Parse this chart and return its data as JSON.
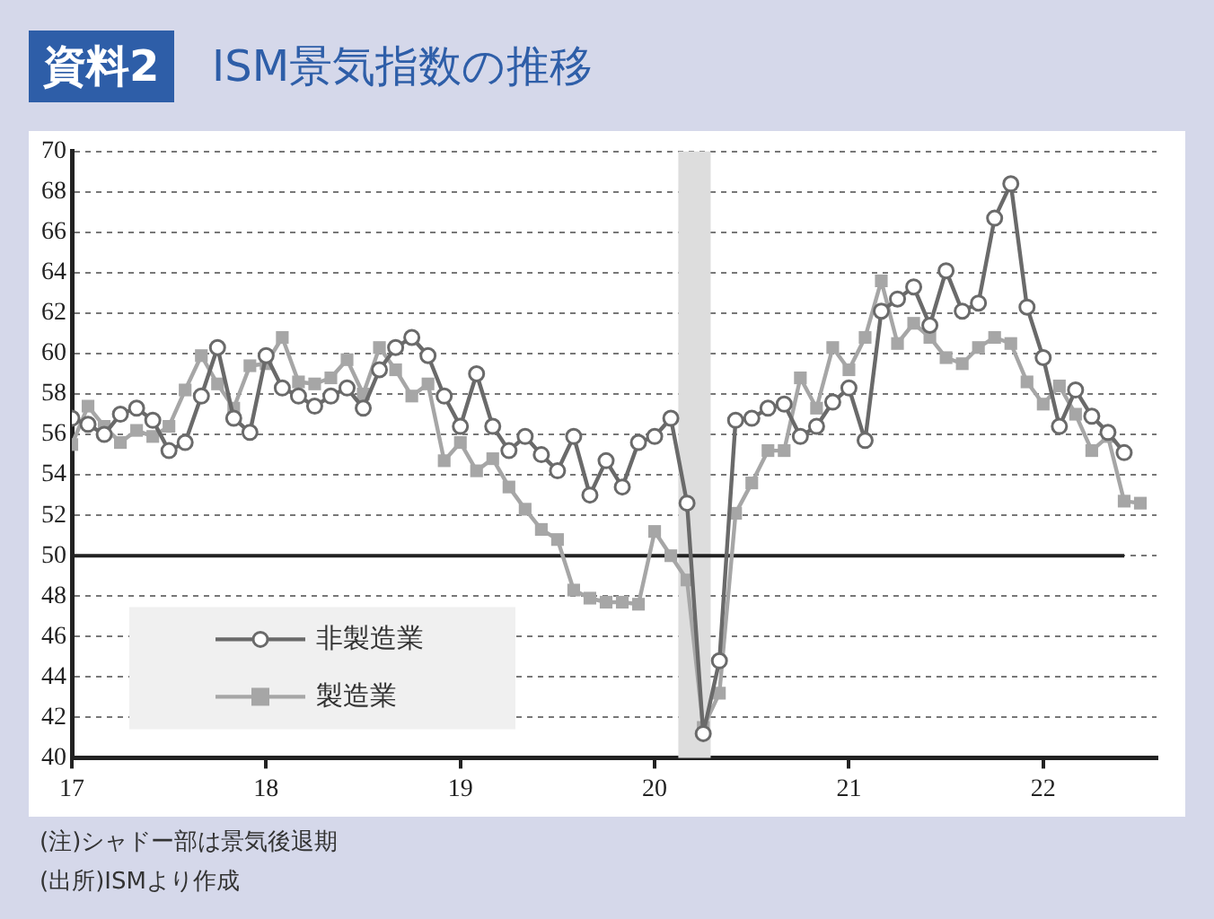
{
  "chart_data": {
    "type": "line",
    "title": "ISM景気指数の推移",
    "subtitle": "資料2",
    "annotations": [
      "(注)シャドー部は景気後退期",
      "(出所)ISMより作成"
    ],
    "x": [
      "2017-01",
      "2017-02",
      "2017-03",
      "2017-04",
      "2017-05",
      "2017-06",
      "2017-07",
      "2017-08",
      "2017-09",
      "2017-10",
      "2017-11",
      "2017-12",
      "2018-01",
      "2018-02",
      "2018-03",
      "2018-04",
      "2018-05",
      "2018-06",
      "2018-07",
      "2018-08",
      "2018-09",
      "2018-10",
      "2018-11",
      "2018-12",
      "2019-01",
      "2019-02",
      "2019-03",
      "2019-04",
      "2019-05",
      "2019-06",
      "2019-07",
      "2019-08",
      "2019-09",
      "2019-10",
      "2019-11",
      "2019-12",
      "2020-01",
      "2020-02",
      "2020-03",
      "2020-04",
      "2020-05",
      "2020-06",
      "2020-07",
      "2020-08",
      "2020-09",
      "2020-10",
      "2020-11",
      "2020-12",
      "2021-01",
      "2021-02",
      "2021-03",
      "2021-04",
      "2021-05",
      "2021-06",
      "2021-07",
      "2021-08",
      "2021-09",
      "2021-10",
      "2021-11",
      "2021-12",
      "2022-01",
      "2022-02",
      "2022-03",
      "2022-04",
      "2022-05",
      "2022-06",
      "2022-07"
    ],
    "series": [
      {
        "name": "非製造業",
        "color": "#6a6a6a",
        "marker": "circle",
        "values": [
          56.8,
          56.5,
          56.0,
          57.0,
          57.3,
          56.7,
          55.2,
          55.6,
          57.9,
          60.3,
          56.8,
          56.1,
          59.9,
          58.3,
          57.9,
          57.4,
          57.9,
          58.3,
          57.3,
          59.2,
          60.3,
          60.8,
          59.9,
          57.9,
          56.4,
          59.0,
          56.4,
          55.2,
          55.9,
          55.0,
          54.2,
          55.9,
          53.0,
          54.7,
          53.4,
          55.6,
          55.9,
          56.8,
          52.6,
          41.2,
          44.8,
          56.7,
          56.8,
          57.3,
          57.5,
          55.9,
          56.4,
          57.6,
          58.3,
          55.7,
          62.1,
          62.7,
          63.3,
          61.4,
          64.1,
          62.1,
          62.5,
          66.7,
          68.4,
          62.3,
          59.8,
          56.4,
          58.2,
          56.9,
          56.1,
          55.1,
          null
        ]
      },
      {
        "name": "製造業",
        "color": "#a6a6a6",
        "marker": "square",
        "values": [
          55.5,
          57.4,
          56.4,
          55.6,
          56.2,
          55.9,
          56.4,
          58.2,
          59.9,
          58.5,
          57.3,
          59.4,
          59.5,
          60.8,
          58.6,
          58.5,
          58.8,
          59.7,
          58.0,
          60.3,
          59.2,
          57.9,
          58.5,
          54.7,
          55.6,
          54.2,
          54.8,
          53.4,
          52.3,
          51.3,
          50.8,
          48.3,
          47.9,
          47.7,
          47.7,
          47.6,
          51.2,
          50.0,
          48.8,
          41.5,
          43.2,
          52.1,
          53.6,
          55.2,
          55.2,
          58.8,
          57.3,
          60.3,
          59.2,
          60.8,
          63.6,
          60.5,
          61.5,
          60.8,
          59.8,
          59.5,
          60.3,
          60.8,
          60.5,
          58.6,
          57.5,
          58.4,
          57.0,
          55.2,
          55.9,
          52.7,
          52.6
        ]
      }
    ],
    "xlim": [
      "2017-01",
      "2022-08"
    ],
    "xticks": [
      {
        "value": "2017-01",
        "label": "17"
      },
      {
        "value": "2018-01",
        "label": "18"
      },
      {
        "value": "2019-01",
        "label": "19"
      },
      {
        "value": "2020-01",
        "label": "20"
      },
      {
        "value": "2021-01",
        "label": "21"
      },
      {
        "value": "2022-01",
        "label": "22"
      }
    ],
    "ylim": [
      40,
      70
    ],
    "yticks": [
      40,
      42,
      44,
      46,
      48,
      50,
      52,
      54,
      56,
      58,
      60,
      62,
      64,
      66,
      68,
      70
    ],
    "ref_lines": [
      {
        "axis": "y",
        "value": 50,
        "color": "#222222",
        "line_style": "solid"
      }
    ],
    "bands": [
      {
        "axis": "x",
        "from": "2020-02-15",
        "to": "2020-04-15",
        "color": "#dddddd"
      }
    ],
    "grid": "y",
    "legend": "bottom left",
    "line_style": "solid"
  }
}
